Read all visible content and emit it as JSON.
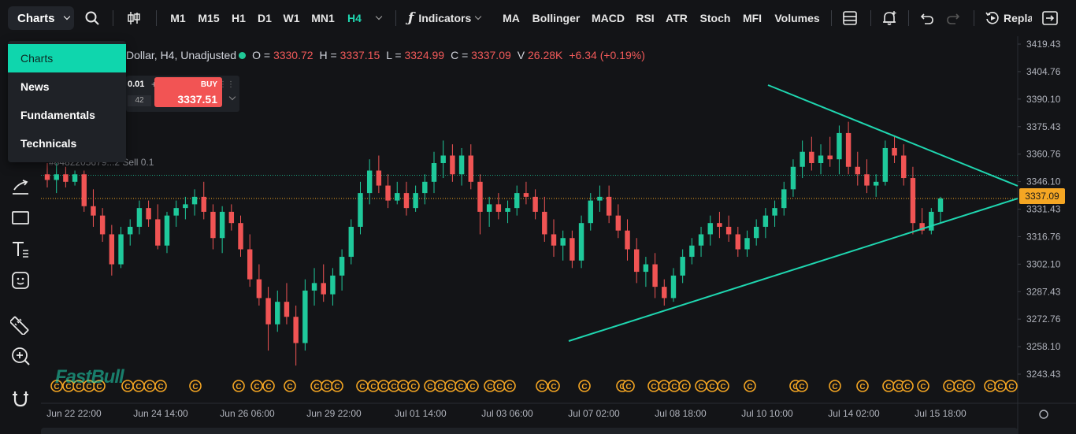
{
  "toolbar": {
    "charts_label": "Charts",
    "timeframes": [
      "M1",
      "M15",
      "H1",
      "D1",
      "W1",
      "MN1",
      "H4"
    ],
    "active_timeframe": "H4",
    "indicators_label": "Indicators",
    "studies": [
      "MA",
      "Bollinger",
      "MACD",
      "RSI",
      "ATR",
      "Stoch",
      "MFI",
      "Volumes"
    ],
    "replay_label": "Repla"
  },
  "menu": {
    "items": [
      "Charts",
      "News",
      "Fundamentals",
      "Technicals"
    ],
    "active": "Charts"
  },
  "legend": {
    "symbol_text": "Dollar, H4, Unadjusted",
    "o_label": "O =",
    "o_value": "3330.72",
    "h_label": "H =",
    "h_value": "3337.15",
    "l_label": "L =",
    "l_value": "3324.99",
    "c_label": "C =",
    "c_value": "3337.09",
    "v_label": "V",
    "v_value": "26.28K",
    "change": "+6.34 (+0.19%)"
  },
  "trade": {
    "quantity": "0.01",
    "spread": "42",
    "buy_label": "BUY",
    "buy_price": "3337.51"
  },
  "position_label": "#8482205679...2 Sell 0.1",
  "current_price": "3337.09",
  "watermark": "FastBull",
  "colors": {
    "up": "#1fc99b",
    "down": "#f05454",
    "trendline": "#1fd6b0",
    "price_tag": "#f5a623",
    "event_marker": "#f5a623"
  },
  "chart_data": {
    "type": "candlestick",
    "y_ticks": [
      "3419.43",
      "3404.76",
      "3390.10",
      "3375.43",
      "3360.76",
      "3346.10",
      "3331.43",
      "3316.76",
      "3302.10",
      "3287.43",
      "3272.76",
      "3258.10",
      "3243.43"
    ],
    "y_range": [
      3236,
      3422
    ],
    "x_labels": [
      "Jun 22 22:00",
      "Jun 24 14:00",
      "Jun 26 06:00",
      "Jun 29 22:00",
      "Jul 01 14:00",
      "Jul 03 06:00",
      "Jul 07 02:00",
      "Jul 08 18:00",
      "Jul 10 10:00",
      "Jul 14 02:00",
      "Jul 15 18:00"
    ],
    "position_line_price": 3349.5,
    "current_price_line": 3337.09,
    "candles": [
      [
        3350,
        3356,
        3343,
        3347
      ],
      [
        3347,
        3356,
        3340,
        3350
      ],
      [
        3350,
        3354,
        3343,
        3346
      ],
      [
        3346,
        3352,
        3344,
        3350
      ],
      [
        3350,
        3352,
        3330,
        3333
      ],
      [
        3333,
        3342,
        3322,
        3328
      ],
      [
        3328,
        3332,
        3314,
        3318
      ],
      [
        3318,
        3323,
        3296,
        3302
      ],
      [
        3302,
        3322,
        3300,
        3318
      ],
      [
        3318,
        3326,
        3312,
        3322
      ],
      [
        3322,
        3336,
        3318,
        3332
      ],
      [
        3332,
        3336,
        3322,
        3326
      ],
      [
        3326,
        3334,
        3310,
        3312
      ],
      [
        3312,
        3330,
        3308,
        3328
      ],
      [
        3328,
        3336,
        3322,
        3332
      ],
      [
        3332,
        3338,
        3326,
        3334
      ],
      [
        3334,
        3342,
        3328,
        3338
      ],
      [
        3338,
        3346,
        3326,
        3330
      ],
      [
        3330,
        3334,
        3310,
        3316
      ],
      [
        3316,
        3333,
        3308,
        3330
      ],
      [
        3330,
        3334,
        3320,
        3324
      ],
      [
        3324,
        3328,
        3306,
        3310
      ],
      [
        3310,
        3318,
        3290,
        3294
      ],
      [
        3294,
        3302,
        3280,
        3284
      ],
      [
        3284,
        3290,
        3256,
        3270
      ],
      [
        3270,
        3288,
        3266,
        3282
      ],
      [
        3282,
        3292,
        3270,
        3274
      ],
      [
        3274,
        3280,
        3248,
        3260
      ],
      [
        3260,
        3294,
        3256,
        3288
      ],
      [
        3288,
        3300,
        3280,
        3292
      ],
      [
        3292,
        3302,
        3282,
        3286
      ],
      [
        3286,
        3300,
        3280,
        3296
      ],
      [
        3296,
        3310,
        3288,
        3306
      ],
      [
        3306,
        3326,
        3302,
        3322
      ],
      [
        3322,
        3346,
        3318,
        3340
      ],
      [
        3340,
        3358,
        3334,
        3352
      ],
      [
        3352,
        3360,
        3340,
        3344
      ],
      [
        3344,
        3350,
        3332,
        3336
      ],
      [
        3336,
        3346,
        3334,
        3340
      ],
      [
        3340,
        3346,
        3328,
        3332
      ],
      [
        3332,
        3344,
        3330,
        3340
      ],
      [
        3340,
        3350,
        3334,
        3346
      ],
      [
        3346,
        3362,
        3340,
        3356
      ],
      [
        3356,
        3368,
        3348,
        3360
      ],
      [
        3360,
        3366,
        3346,
        3350
      ],
      [
        3350,
        3364,
        3344,
        3360
      ],
      [
        3360,
        3366,
        3342,
        3346
      ],
      [
        3346,
        3350,
        3318,
        3330
      ],
      [
        3330,
        3338,
        3322,
        3334
      ],
      [
        3334,
        3340,
        3326,
        3330
      ],
      [
        3330,
        3336,
        3324,
        3332
      ],
      [
        3332,
        3344,
        3328,
        3340
      ],
      [
        3340,
        3346,
        3334,
        3338
      ],
      [
        3338,
        3342,
        3326,
        3330
      ],
      [
        3330,
        3338,
        3314,
        3318
      ],
      [
        3318,
        3326,
        3306,
        3312
      ],
      [
        3312,
        3320,
        3304,
        3316
      ],
      [
        3316,
        3320,
        3300,
        3304
      ],
      [
        3304,
        3328,
        3300,
        3324
      ],
      [
        3324,
        3340,
        3320,
        3336
      ],
      [
        3336,
        3344,
        3330,
        3338
      ],
      [
        3338,
        3344,
        3324,
        3328
      ],
      [
        3328,
        3334,
        3316,
        3320
      ],
      [
        3320,
        3326,
        3304,
        3310
      ],
      [
        3310,
        3316,
        3292,
        3298
      ],
      [
        3298,
        3306,
        3290,
        3302
      ],
      [
        3302,
        3308,
        3284,
        3290
      ],
      [
        3290,
        3294,
        3280,
        3284
      ],
      [
        3284,
        3300,
        3282,
        3296
      ],
      [
        3296,
        3310,
        3292,
        3306
      ],
      [
        3306,
        3316,
        3302,
        3312
      ],
      [
        3312,
        3322,
        3306,
        3318
      ],
      [
        3318,
        3328,
        3312,
        3324
      ],
      [
        3324,
        3330,
        3316,
        3322
      ],
      [
        3322,
        3328,
        3314,
        3318
      ],
      [
        3318,
        3322,
        3306,
        3310
      ],
      [
        3310,
        3320,
        3306,
        3316
      ],
      [
        3316,
        3326,
        3312,
        3322
      ],
      [
        3322,
        3332,
        3316,
        3328
      ],
      [
        3328,
        3336,
        3322,
        3332
      ],
      [
        3332,
        3346,
        3328,
        3342
      ],
      [
        3342,
        3358,
        3338,
        3354
      ],
      [
        3354,
        3368,
        3348,
        3362
      ],
      [
        3362,
        3370,
        3352,
        3356
      ],
      [
        3356,
        3366,
        3350,
        3360
      ],
      [
        3360,
        3370,
        3354,
        3358
      ],
      [
        3358,
        3376,
        3350,
        3372
      ],
      [
        3372,
        3378,
        3350,
        3354
      ],
      [
        3354,
        3362,
        3344,
        3350
      ],
      [
        3350,
        3358,
        3340,
        3344
      ],
      [
        3344,
        3350,
        3338,
        3346
      ],
      [
        3346,
        3368,
        3344,
        3364
      ],
      [
        3364,
        3370,
        3356,
        3360
      ],
      [
        3360,
        3366,
        3344,
        3348
      ],
      [
        3348,
        3354,
        3318,
        3324
      ],
      [
        3324,
        3332,
        3318,
        3320
      ],
      [
        3320,
        3332,
        3318,
        3330
      ],
      [
        3330,
        3338,
        3324,
        3337.09
      ]
    ],
    "event_marker_count": 60
  }
}
